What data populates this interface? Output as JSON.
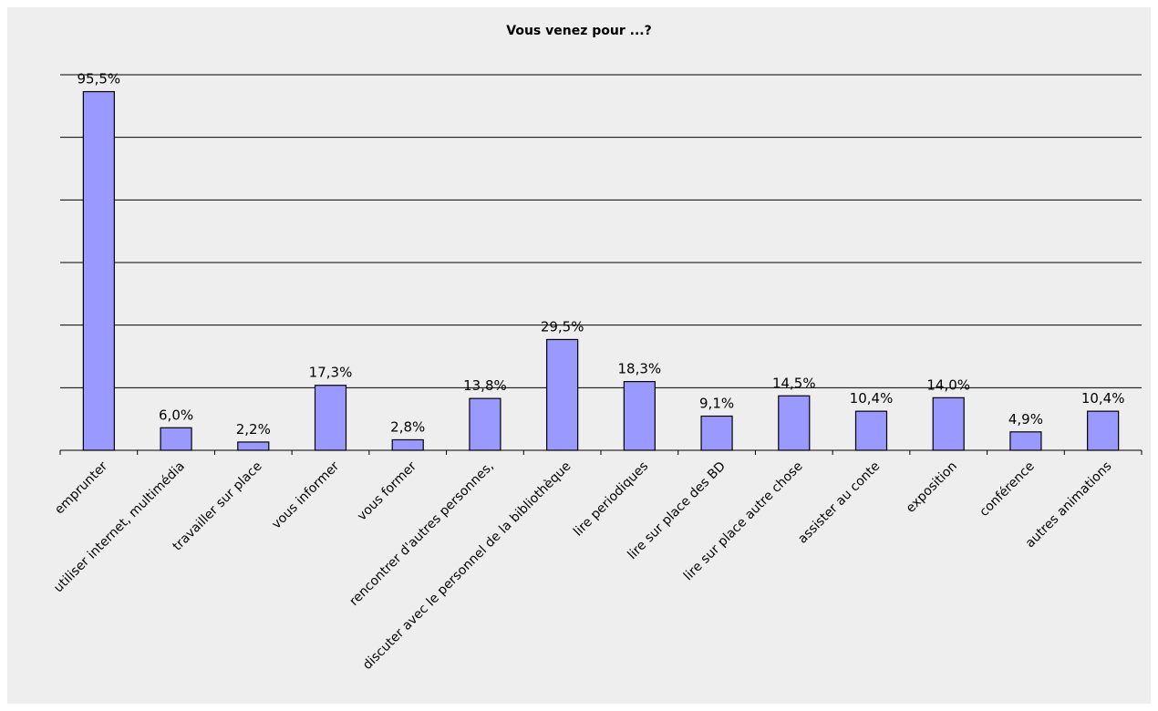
{
  "chart_data": {
    "type": "bar",
    "title": "Vous venez pour ...?",
    "xlabel": "",
    "ylabel": "",
    "ylim": [
      0,
      100
    ],
    "grid": true,
    "categories": [
      "emprunter",
      "utiliser internet, multimédia",
      "travailler sur place",
      "vous informer",
      "vous former",
      "rencontrer d'autres personnes,",
      "discuter avec le personnel de la bibliothèque",
      "lire periodiques",
      "lire sur place des BD",
      "lire sur place autre chose",
      "assister au conte",
      "exposition",
      "conférence",
      "autres animations"
    ],
    "values": [
      95.5,
      6.0,
      2.2,
      17.3,
      2.8,
      13.8,
      29.5,
      18.3,
      9.1,
      14.5,
      10.4,
      14.0,
      4.9,
      10.4
    ],
    "data_labels": [
      "95,5%",
      "6,0%",
      "2,2%",
      "17,3%",
      "2,8%",
      "13,8%",
      "29,5%",
      "18,3%",
      "9,1%",
      "14,5%",
      "10,4%",
      "14,0%",
      "4,9%",
      "10,4%"
    ],
    "bar_color": "#9999ff",
    "bar_border_color": "#000000",
    "gridline_color": "#000000",
    "background_color": "#eeeeee"
  }
}
